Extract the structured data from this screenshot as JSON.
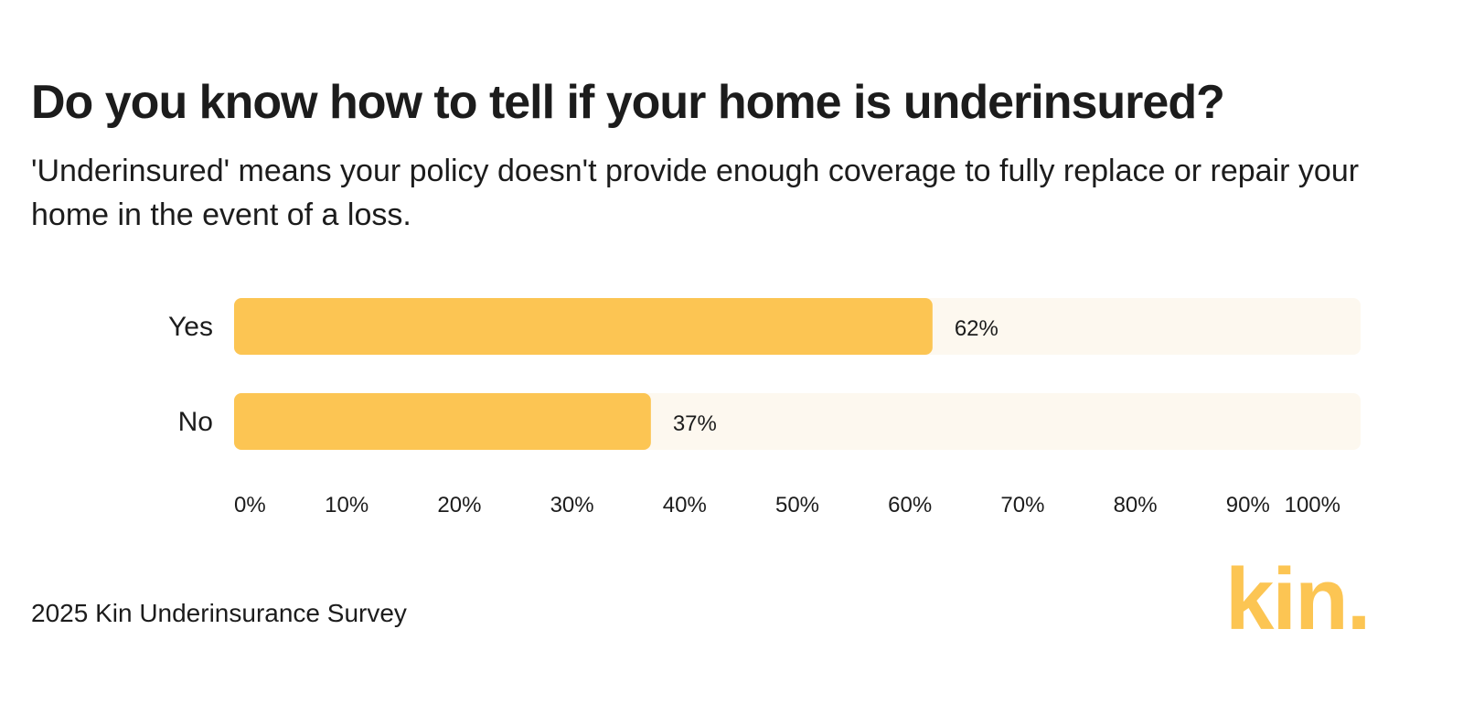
{
  "header": {
    "title": "Do you know how to tell if your home is underinsured?",
    "subtitle": "'Underinsured' means your policy doesn't provide enough coverage to fully replace or repair your home in the event of a loss."
  },
  "footer": {
    "source": "2025 Kin Underinsurance Survey",
    "logo_text": "kin."
  },
  "colors": {
    "bar": "#fcc553",
    "track": "#fdf8ef",
    "text": "#1c1c1c",
    "logo": "#fcc553"
  },
  "chart_data": {
    "type": "bar",
    "orientation": "horizontal",
    "categories": [
      "Yes",
      "No"
    ],
    "values": [
      62,
      37
    ],
    "value_labels": [
      "62%",
      "37%"
    ],
    "xlim": [
      0,
      100
    ],
    "x_ticks": [
      "0%",
      "10%",
      "20%",
      "30%",
      "40%",
      "50%",
      "60%",
      "70%",
      "80%",
      "90%",
      "100%"
    ],
    "grid": false,
    "legend": "none"
  }
}
